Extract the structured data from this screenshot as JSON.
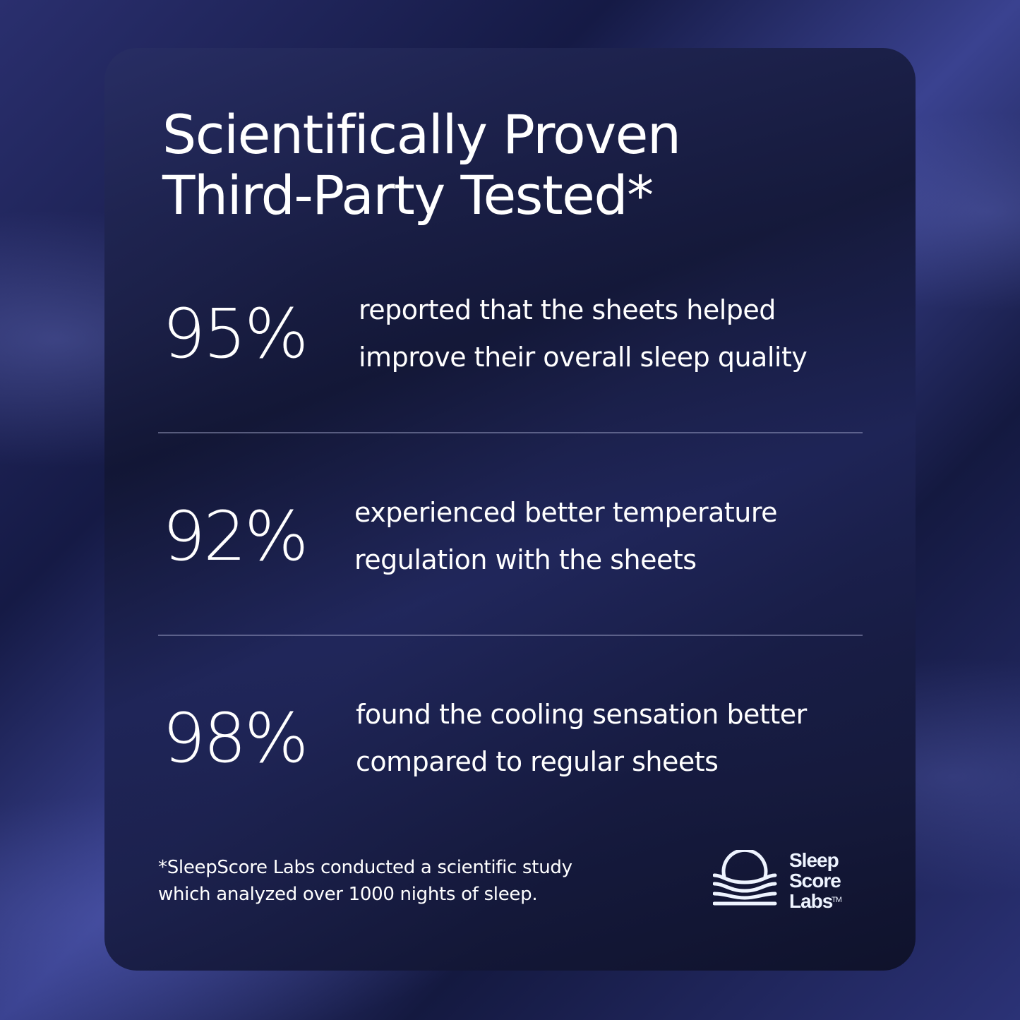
{
  "title": {
    "line1": "Scientifically Proven",
    "line2": "Third-Party Tested*"
  },
  "stats": [
    {
      "value": "95%",
      "line1": "reported that the sheets helped",
      "line2": "improve their overall sleep quality"
    },
    {
      "value": "92%",
      "line1": "experienced better temperature",
      "line2": "regulation with the sheets"
    },
    {
      "value": "98%",
      "line1": "found the cooling sensation better",
      "line2": "compared to regular sheets"
    }
  ],
  "footnote": {
    "line1": "*SleepScore Labs conducted a scientific study",
    "line2": "which analyzed over 1000 nights of sleep."
  },
  "logo": {
    "icon": "sun-over-waves-icon",
    "line1": "Sleep",
    "line2": "Score",
    "line3": "Labs™"
  },
  "colors": {
    "card": "#161a3c",
    "text": "#ffffff",
    "logo": "#eef4ff"
  }
}
